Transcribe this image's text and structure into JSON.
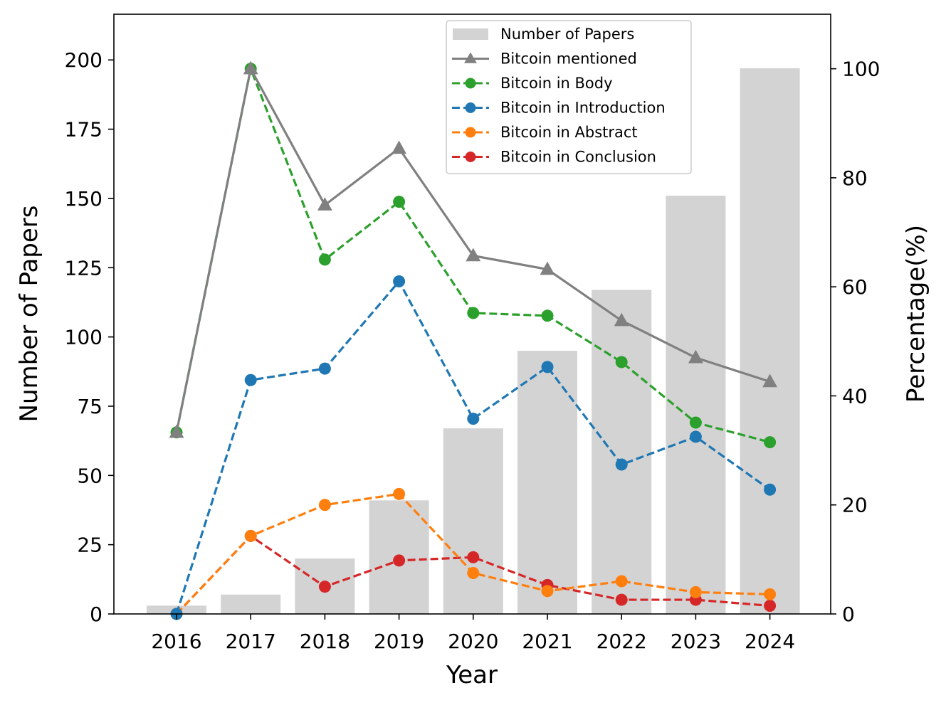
{
  "chart_data": {
    "type": "bar+line",
    "categories": [
      "2016",
      "2017",
      "2018",
      "2019",
      "2020",
      "2021",
      "2022",
      "2023",
      "2024"
    ],
    "bars": {
      "name": "Number of Papers",
      "values": [
        3,
        7,
        20,
        41,
        67,
        95,
        117,
        151,
        197
      ],
      "color": "#d3d3d3"
    },
    "series": [
      {
        "name": "Bitcoin mentioned",
        "values": [
          33.3,
          100,
          75,
          85.4,
          65.7,
          63.2,
          53.8,
          47,
          42.6
        ],
        "color": "#808080",
        "marker": "triangle",
        "dash": "solid"
      },
      {
        "name": "Bitcoin in Body",
        "values": [
          33.3,
          100,
          65,
          75.6,
          55.2,
          54.7,
          46.2,
          35.1,
          31.5
        ],
        "color": "#2ca02c",
        "marker": "circle",
        "dash": "dashed"
      },
      {
        "name": "Bitcoin in Introduction",
        "values": [
          0,
          42.9,
          45,
          61,
          35.8,
          45.3,
          27.4,
          32.5,
          22.8
        ],
        "color": "#1f77b4",
        "marker": "circle",
        "dash": "dashed"
      },
      {
        "name": "Bitcoin in Abstract",
        "values": [
          0,
          14.3,
          20,
          22,
          7.5,
          4.2,
          6,
          4,
          3.6
        ],
        "color": "#ff7f0e",
        "marker": "circle",
        "dash": "dashed"
      },
      {
        "name": "Bitcoin in Conclusion",
        "values": [
          0,
          14.3,
          5,
          9.8,
          10.4,
          5.3,
          2.6,
          2.6,
          1.5
        ],
        "color": "#d62728",
        "marker": "circle",
        "dash": "dashed"
      }
    ],
    "xlabel": "Year",
    "ylabel": "Number of Papers",
    "y2label": "Percentage(%)",
    "ylim": [
      0,
      216.5
    ],
    "y2lim": [
      0,
      110
    ],
    "yticks": [
      "0",
      "25",
      "50",
      "75",
      "100",
      "125",
      "150",
      "175",
      "200"
    ],
    "y2ticks": [
      "0",
      "20",
      "40",
      "60",
      "80",
      "100"
    ],
    "legend_position": "top-center"
  }
}
